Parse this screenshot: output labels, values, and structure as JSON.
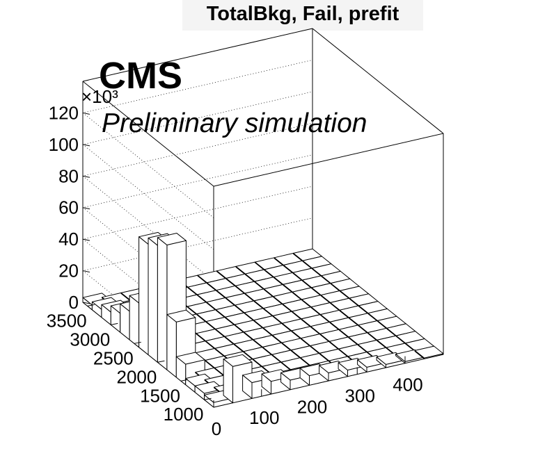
{
  "chart_data": {
    "type": "lego3d",
    "title": "TotalBkg, Fail, prefit",
    "experiment_label": "CMS",
    "status_label": "Preliminary simulation",
    "z_multiplier": "×10³",
    "x_ticks": [
      0,
      100,
      200,
      300,
      400
    ],
    "x_tick_labels": [
      "0",
      "100",
      "200",
      "300",
      "400"
    ],
    "y_ticks": [
      1000,
      1500,
      2000,
      2500,
      3000,
      3500
    ],
    "y_tick_labels": [
      "1000",
      "1500",
      "2000",
      "2500",
      "3000",
      "3500"
    ],
    "z_ticks": [
      0,
      20,
      40,
      60,
      80,
      100,
      120
    ],
    "z_tick_labels": [
      "0",
      "20",
      "40",
      "60",
      "80",
      "100",
      "120"
    ],
    "xlim": [
      0,
      480
    ],
    "ylim": [
      800,
      3600
    ],
    "zlim": [
      0,
      140
    ],
    "nx": 12,
    "ny": 14,
    "grid": true,
    "row_front_values": [
      3,
      23,
      10,
      8,
      6,
      6,
      5,
      4,
      3,
      2,
      1,
      0.5
    ],
    "back_column_values": [
      5,
      4,
      4,
      13,
      35,
      79,
      74,
      70,
      28,
      18,
      12,
      8,
      5,
      3
    ],
    "interior_value": 0.4
  }
}
